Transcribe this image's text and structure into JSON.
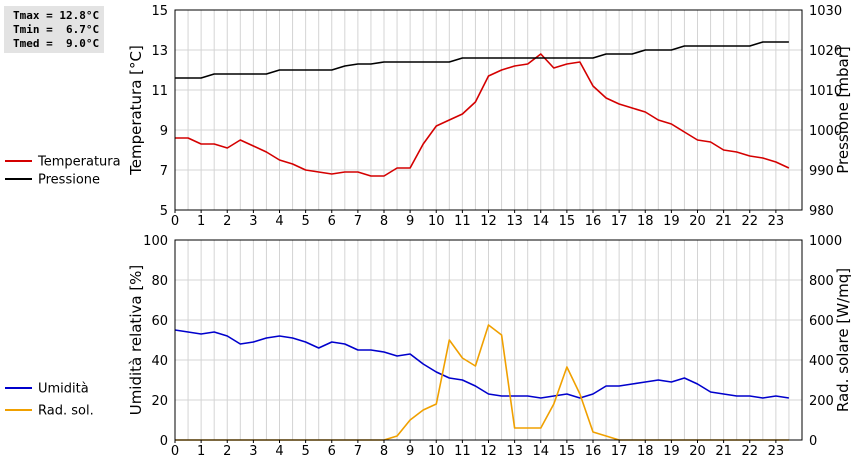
{
  "stats": {
    "tmax": "Tmax = 12.8°C",
    "tmin": "Tmin =  6.7°C",
    "tmed": "Tmed =  9.0°C"
  },
  "colors": {
    "temperature": "#d40000",
    "pressure": "#000000",
    "humidity": "#0000cc",
    "solar": "#f0a000",
    "grid": "#d4d4d4"
  },
  "chart_data": [
    {
      "type": "line",
      "x_ticks": [
        "0",
        "1",
        "2",
        "3",
        "4",
        "5",
        "6",
        "7",
        "8",
        "9",
        "10",
        "11",
        "12",
        "13",
        "14",
        "15",
        "16",
        "17",
        "18",
        "19",
        "20",
        "21",
        "22",
        "23"
      ],
      "ylabel": "Temperatura [°C]",
      "y2label": "Pressione [mbar]",
      "ylim": [
        5,
        15
      ],
      "y_ticks": [
        "5",
        "7",
        "9",
        "11",
        "13",
        "15"
      ],
      "y2lim": [
        980,
        1030
      ],
      "y2_ticks": [
        "980",
        "990",
        "1000",
        "1010",
        "1020",
        "1030"
      ],
      "xlim": [
        0,
        24
      ],
      "grid": true,
      "legend_position": "left",
      "series": [
        {
          "name": "Temperatura",
          "axis": "left",
          "color": "#d40000",
          "x": [
            0,
            0.5,
            1,
            1.5,
            2,
            2.5,
            3,
            3.5,
            4,
            4.5,
            5,
            5.5,
            6,
            6.5,
            7,
            7.5,
            8,
            8.5,
            9,
            9.5,
            10,
            10.5,
            11,
            11.5,
            12,
            12.5,
            13,
            13.5,
            14,
            14.5,
            15,
            15.5,
            16,
            16.5,
            17,
            17.5,
            18,
            18.5,
            19,
            19.5,
            20,
            20.5,
            21,
            21.5,
            22,
            22.5,
            23,
            23.5
          ],
          "y": [
            8.6,
            8.6,
            8.3,
            8.3,
            8.1,
            8.5,
            8.2,
            7.9,
            7.5,
            7.3,
            7.0,
            6.9,
            6.8,
            6.9,
            6.9,
            6.7,
            6.7,
            7.1,
            7.1,
            8.3,
            9.2,
            9.5,
            9.8,
            10.4,
            11.7,
            12.0,
            12.2,
            12.3,
            12.8,
            12.1,
            12.3,
            12.4,
            11.2,
            10.6,
            10.3,
            10.1,
            9.9,
            9.5,
            9.3,
            8.9,
            8.5,
            8.4,
            8.0,
            7.9,
            7.7,
            7.6,
            7.4,
            7.1
          ]
        },
        {
          "name": "Pressione",
          "axis": "right",
          "color": "#000000",
          "x": [
            0,
            0.5,
            1,
            1.5,
            2,
            2.5,
            3,
            3.5,
            4,
            4.5,
            5,
            5.5,
            6,
            6.5,
            7,
            7.5,
            8,
            8.5,
            9,
            9.5,
            10,
            10.5,
            11,
            11.5,
            12,
            12.5,
            13,
            13.5,
            14,
            14.5,
            15,
            15.5,
            16,
            16.5,
            17,
            17.5,
            18,
            18.5,
            19,
            19.5,
            20,
            20.5,
            21,
            21.5,
            22,
            22.5,
            23,
            23.5
          ],
          "y": [
            1013,
            1013,
            1013,
            1014,
            1014,
            1014,
            1014,
            1014,
            1015,
            1015,
            1015,
            1015,
            1015,
            1016,
            1016.5,
            1016.5,
            1017,
            1017,
            1017,
            1017,
            1017,
            1017,
            1018,
            1018,
            1018,
            1018,
            1018,
            1018,
            1018,
            1018,
            1018,
            1018,
            1018,
            1019,
            1019,
            1019,
            1020,
            1020,
            1020,
            1021,
            1021,
            1021,
            1021,
            1021,
            1021,
            1022,
            1022,
            1022
          ]
        }
      ]
    },
    {
      "type": "line",
      "x_ticks": [
        "0",
        "1",
        "2",
        "3",
        "4",
        "5",
        "6",
        "7",
        "8",
        "9",
        "10",
        "11",
        "12",
        "13",
        "14",
        "15",
        "16",
        "17",
        "18",
        "19",
        "20",
        "21",
        "22",
        "23"
      ],
      "ylabel": "Umidità relativa [%]",
      "y2label": "Rad. solare [W/mq]",
      "ylim": [
        0,
        100
      ],
      "y_ticks": [
        "0",
        "20",
        "40",
        "60",
        "80",
        "100"
      ],
      "y2lim": [
        0,
        1000
      ],
      "y2_ticks": [
        "0",
        "200",
        "400",
        "600",
        "800",
        "1000"
      ],
      "xlim": [
        0,
        24
      ],
      "grid": true,
      "legend_position": "left",
      "series": [
        {
          "name": "Umidità",
          "axis": "left",
          "color": "#0000cc",
          "x": [
            0,
            0.5,
            1,
            1.5,
            2,
            2.5,
            3,
            3.5,
            4,
            4.5,
            5,
            5.5,
            6,
            6.5,
            7,
            7.5,
            8,
            8.5,
            9,
            9.5,
            10,
            10.5,
            11,
            11.5,
            12,
            12.5,
            13,
            13.5,
            14,
            14.5,
            15,
            15.5,
            16,
            16.5,
            17,
            17.5,
            18,
            18.5,
            19,
            19.5,
            20,
            20.5,
            21,
            21.5,
            22,
            22.5,
            23,
            23.5
          ],
          "y": [
            55,
            54,
            53,
            54,
            52,
            48,
            49,
            51,
            52,
            51,
            49,
            46,
            49,
            48,
            45,
            45,
            44,
            42,
            43,
            38,
            34,
            31,
            30,
            27,
            23,
            22,
            22,
            22,
            21,
            22,
            23,
            21,
            23,
            27,
            27,
            28,
            29,
            30,
            29,
            31,
            28,
            24,
            23,
            22,
            22,
            21,
            22,
            21
          ]
        },
        {
          "name": "Rad. sol.",
          "axis": "right",
          "color": "#f0a000",
          "x": [
            0,
            0.5,
            1,
            1.5,
            2,
            2.5,
            3,
            3.5,
            4,
            4.5,
            5,
            5.5,
            6,
            6.5,
            7,
            7.5,
            8,
            8.5,
            9,
            9.5,
            10,
            10.5,
            11,
            11.5,
            12,
            12.5,
            13,
            13.5,
            14,
            14.5,
            15,
            15.5,
            16,
            16.5,
            17,
            17.5,
            18,
            18.5,
            19,
            19.5,
            20,
            20.5,
            21,
            21.5,
            22,
            22.5,
            23,
            23.5
          ],
          "y": [
            0,
            0,
            0,
            0,
            0,
            0,
            0,
            0,
            0,
            0,
            0,
            0,
            0,
            0,
            0,
            0,
            0,
            20,
            100,
            150,
            180,
            500,
            410,
            370,
            575,
            525,
            60,
            60,
            60,
            180,
            365,
            230,
            40,
            20,
            0,
            0,
            0,
            0,
            0,
            0,
            0,
            0,
            0,
            0,
            0,
            0,
            0,
            0
          ]
        }
      ]
    }
  ]
}
